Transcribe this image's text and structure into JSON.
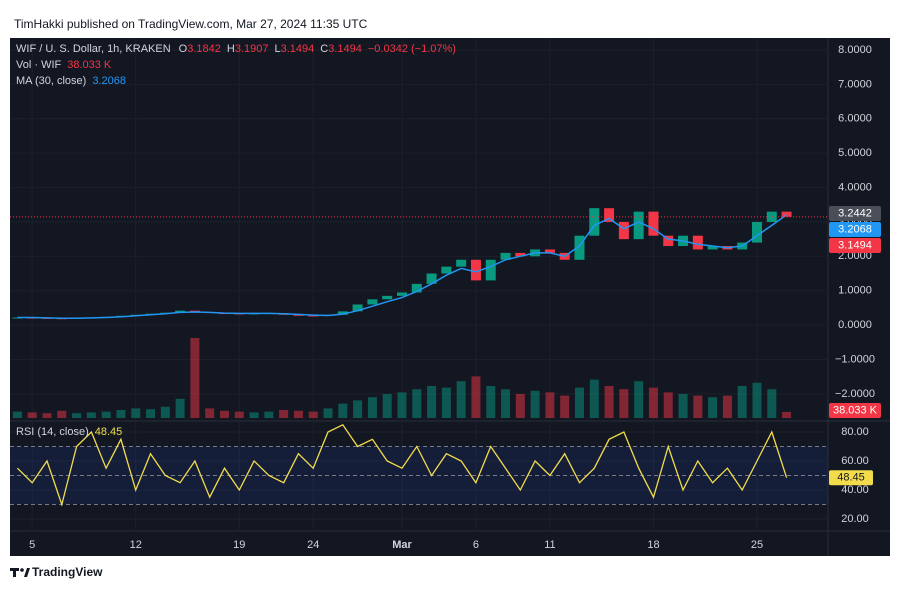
{
  "header": "TimHakki published on TradingView.com, Mar 27, 2024 11:35 UTC",
  "footer": "TradingView",
  "chart_data": [
    {
      "type": "candlestick",
      "title": "WIF / U. S. Dollar, 1h, KRAKEN",
      "ohlc": [
        {
          "label": "O",
          "value": 3.1842
        },
        {
          "label": "H",
          "value": 3.1907
        },
        {
          "label": "L",
          "value": 3.1494
        },
        {
          "label": "C",
          "value": 3.1494
        }
      ],
      "change": "−0.0342 (−1.07%)",
      "x": [
        4,
        5,
        6,
        7,
        8,
        9,
        10,
        11,
        12,
        13,
        14,
        15,
        16,
        17,
        18,
        19,
        20,
        21,
        22,
        23,
        24,
        25,
        26,
        27,
        28,
        29,
        30,
        31,
        32,
        33,
        34,
        35,
        36,
        37,
        38,
        39,
        40,
        41,
        42,
        43,
        44,
        45,
        46,
        47,
        48,
        49,
        50,
        51,
        52,
        53,
        54,
        55,
        56
      ],
      "values": [
        0.22,
        0.21,
        0.2,
        0.19,
        0.21,
        0.22,
        0.24,
        0.27,
        0.3,
        0.33,
        0.36,
        0.42,
        0.38,
        0.35,
        0.34,
        0.33,
        0.34,
        0.35,
        0.3,
        0.28,
        0.27,
        0.3,
        0.4,
        0.6,
        0.75,
        0.85,
        0.95,
        1.2,
        1.5,
        1.7,
        1.9,
        1.3,
        1.9,
        2.1,
        2.0,
        2.2,
        2.1,
        1.9,
        2.6,
        3.4,
        3.0,
        2.5,
        3.3,
        2.6,
        2.3,
        2.6,
        2.2,
        2.3,
        2.2,
        2.4,
        3.0,
        3.3,
        3.1494
      ],
      "up_color": "#089981",
      "down_color": "#f23645",
      "series": [
        {
          "name": "MA (30, close)",
          "color": "#2196f3",
          "values": [
            0.22,
            0.22,
            0.21,
            0.2,
            0.2,
            0.21,
            0.22,
            0.24,
            0.27,
            0.3,
            0.33,
            0.37,
            0.38,
            0.37,
            0.35,
            0.34,
            0.34,
            0.34,
            0.33,
            0.31,
            0.29,
            0.28,
            0.32,
            0.42,
            0.55,
            0.68,
            0.8,
            0.98,
            1.2,
            1.45,
            1.65,
            1.55,
            1.7,
            1.9,
            2.0,
            2.1,
            2.1,
            2.0,
            2.3,
            2.9,
            3.1,
            2.8,
            3.0,
            2.8,
            2.5,
            2.45,
            2.35,
            2.3,
            2.25,
            2.3,
            2.6,
            2.9,
            3.2068
          ]
        },
        {
          "name": "Vol · WIF",
          "style": "bar",
          "values": [
            40,
            35,
            30,
            45,
            30,
            35,
            40,
            50,
            60,
            55,
            70,
            120,
            500,
            60,
            45,
            40,
            35,
            40,
            50,
            45,
            40,
            60,
            90,
            110,
            130,
            150,
            160,
            180,
            200,
            190,
            230,
            260,
            200,
            180,
            150,
            170,
            160,
            140,
            190,
            240,
            200,
            180,
            230,
            190,
            160,
            150,
            140,
            130,
            140,
            200,
            220,
            180,
            38.033
          ],
          "value_labels": [
            null,
            null,
            null,
            null,
            null,
            null,
            null,
            null,
            null,
            null,
            null,
            null,
            null,
            null,
            null,
            null,
            null,
            null,
            null,
            null,
            null,
            null,
            null,
            null,
            null,
            null,
            null,
            null,
            null,
            null,
            null,
            null,
            null,
            null,
            null,
            null,
            null,
            null,
            null,
            null,
            null,
            null,
            null,
            null,
            null,
            null,
            null,
            null,
            null,
            null,
            null,
            null,
            "38.033 K"
          ]
        }
      ],
      "xlim": [
        3.5,
        58.8
      ],
      "xticks": [
        5,
        12,
        19,
        24,
        {
          "value": 30,
          "label": "Mar"
        },
        {
          "value": 35,
          "label": "6"
        },
        {
          "value": 40,
          "label": "11"
        },
        {
          "value": 47,
          "label": "18"
        },
        {
          "value": 54,
          "label": "25"
        }
      ],
      "ylim": [
        -2.76,
        8.35
      ],
      "yticks": [
        {
          "value": 8,
          "label": "8.0000"
        },
        {
          "value": 7,
          "label": "7.0000"
        },
        {
          "value": 6,
          "label": "6.0000"
        },
        {
          "value": 5,
          "label": "5.0000"
        },
        {
          "value": 4,
          "label": "4.0000"
        },
        {
          "value": 3,
          "label": "3.0000"
        },
        {
          "value": 2,
          "label": "2.0000"
        },
        {
          "value": 1,
          "label": "1.0000"
        },
        {
          "value": 0,
          "label": "0.0000"
        },
        {
          "value": -1,
          "label": "−1.0000"
        },
        {
          "value": -2,
          "label": "−2.0000"
        }
      ],
      "axis_badges": [
        {
          "value": 3.2442,
          "color": "#4a4e59"
        },
        {
          "value": 3.2068,
          "color": "#2196f3"
        },
        {
          "value": 3.1494,
          "color": "#f23645"
        }
      ],
      "grid": true
    },
    {
      "type": "line",
      "title": "RSI (14, close)",
      "color": "#f2dc4c",
      "x": [
        4,
        5,
        6,
        7,
        8,
        9,
        10,
        11,
        12,
        13,
        14,
        15,
        16,
        17,
        18,
        19,
        20,
        21,
        22,
        23,
        24,
        25,
        26,
        27,
        28,
        29,
        30,
        31,
        32,
        33,
        34,
        35,
        36,
        37,
        38,
        39,
        40,
        41,
        42,
        43,
        44,
        45,
        46,
        47,
        48,
        49,
        50,
        51,
        52,
        53,
        54,
        55,
        56
      ],
      "values": [
        55,
        45,
        60,
        30,
        70,
        80,
        55,
        75,
        40,
        65,
        50,
        45,
        60,
        35,
        55,
        40,
        60,
        50,
        45,
        65,
        55,
        80,
        85,
        70,
        75,
        60,
        55,
        70,
        50,
        65,
        60,
        45,
        70,
        55,
        40,
        60,
        50,
        65,
        45,
        55,
        75,
        80,
        55,
        35,
        70,
        40,
        60,
        45,
        55,
        40,
        60,
        80,
        48.45
      ],
      "xlim": [
        3.5,
        58.8
      ],
      "ylim": [
        12.4,
        86.9
      ],
      "yticks": [
        {
          "value": 80,
          "label": "80.00"
        },
        {
          "value": 60,
          "label": "60.00"
        },
        {
          "value": 40,
          "label": "40.00"
        },
        {
          "value": 20,
          "label": "20.00"
        }
      ],
      "levels": [
        70,
        50,
        30
      ]
    }
  ]
}
